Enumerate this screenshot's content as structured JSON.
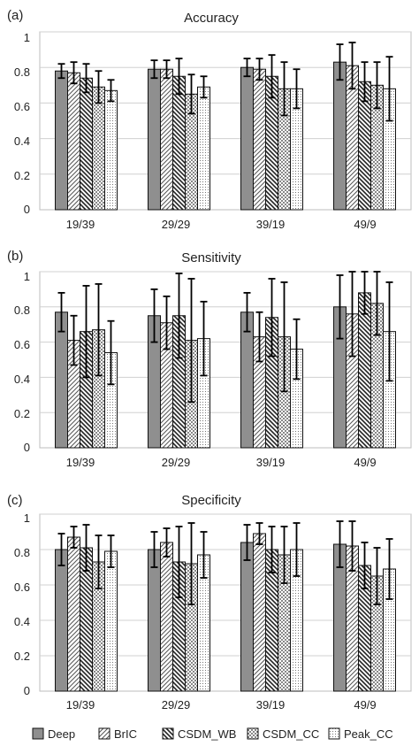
{
  "chart_data": [
    {
      "type": "bar",
      "panel_label": "(a)",
      "title": "Accuracy",
      "categories": [
        "19/39",
        "29/29",
        "39/19",
        "49/9"
      ],
      "ylim": [
        0,
        1
      ],
      "yticks": [
        "0",
        "0.2",
        "0.4",
        "0.6",
        "0.8",
        "1"
      ],
      "grid": true,
      "series": [
        {
          "name": "Deep",
          "values": [
            0.78,
            0.79,
            0.8,
            0.83
          ],
          "errors": [
            0.04,
            0.05,
            0.05,
            0.1
          ]
        },
        {
          "name": "BrIC",
          "values": [
            0.77,
            0.79,
            0.79,
            0.81
          ],
          "errors": [
            0.06,
            0.05,
            0.06,
            0.13
          ]
        },
        {
          "name": "CSDM_WB",
          "values": [
            0.74,
            0.75,
            0.75,
            0.72
          ],
          "errors": [
            0.08,
            0.1,
            0.12,
            0.11
          ]
        },
        {
          "name": "CSDM_CC",
          "values": [
            0.69,
            0.65,
            0.68,
            0.7
          ],
          "errors": [
            0.09,
            0.11,
            0.15,
            0.13
          ]
        },
        {
          "name": "Peak_CC",
          "values": [
            0.67,
            0.69,
            0.68,
            0.68
          ],
          "errors": [
            0.06,
            0.06,
            0.11,
            0.18
          ]
        }
      ]
    },
    {
      "type": "bar",
      "panel_label": "(b)",
      "title": "Sensitivity",
      "categories": [
        "19/39",
        "29/29",
        "39/19",
        "49/9"
      ],
      "ylim": [
        0,
        1
      ],
      "yticks": [
        "0",
        "0.2",
        "0.4",
        "0.6",
        "0.8",
        "1"
      ],
      "grid": true,
      "series": [
        {
          "name": "Deep",
          "values": [
            0.77,
            0.75,
            0.77,
            0.8
          ],
          "errors": [
            0.11,
            0.15,
            0.11,
            0.18
          ]
        },
        {
          "name": "BrIC",
          "values": [
            0.61,
            0.71,
            0.63,
            0.76
          ],
          "errors": [
            0.14,
            0.15,
            0.14,
            0.24
          ]
        },
        {
          "name": "CSDM_WB",
          "values": [
            0.66,
            0.75,
            0.74,
            0.88
          ],
          "errors": [
            0.26,
            0.24,
            0.22,
            0.12
          ]
        },
        {
          "name": "CSDM_CC",
          "values": [
            0.67,
            0.61,
            0.63,
            0.82
          ],
          "errors": [
            0.26,
            0.35,
            0.31,
            0.18
          ]
        },
        {
          "name": "Peak_CC",
          "values": [
            0.54,
            0.62,
            0.56,
            0.66
          ],
          "errors": [
            0.18,
            0.21,
            0.17,
            0.28
          ]
        }
      ]
    },
    {
      "type": "bar",
      "panel_label": "(c)",
      "title": "Specificity",
      "categories": [
        "19/39",
        "29/29",
        "39/19",
        "49/9"
      ],
      "ylim": [
        0,
        1
      ],
      "yticks": [
        "0",
        "0.2",
        "0.4",
        "0.6",
        "0.8",
        "1"
      ],
      "grid": true,
      "series": [
        {
          "name": "Deep",
          "values": [
            0.8,
            0.8,
            0.84,
            0.83
          ],
          "errors": [
            0.09,
            0.1,
            0.1,
            0.13
          ]
        },
        {
          "name": "BrIC",
          "values": [
            0.87,
            0.84,
            0.89,
            0.82
          ],
          "errors": [
            0.06,
            0.08,
            0.06,
            0.14
          ]
        },
        {
          "name": "CSDM_WB",
          "values": [
            0.81,
            0.73,
            0.8,
            0.71
          ],
          "errors": [
            0.13,
            0.2,
            0.13,
            0.13
          ]
        },
        {
          "name": "CSDM_CC",
          "values": [
            0.73,
            0.72,
            0.77,
            0.65
          ],
          "errors": [
            0.15,
            0.23,
            0.16,
            0.16
          ]
        },
        {
          "name": "Peak_CC",
          "values": [
            0.79,
            0.77,
            0.8,
            0.69
          ],
          "errors": [
            0.09,
            0.13,
            0.15,
            0.17
          ]
        }
      ]
    }
  ],
  "legend": {
    "placement": "bottom",
    "entries": [
      "Deep",
      "BrIC",
      "CSDM_WB",
      "CSDM_CC",
      "Peak_CC"
    ]
  }
}
